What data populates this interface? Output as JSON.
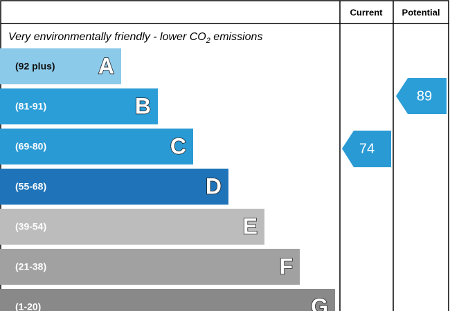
{
  "header": {
    "columns": [
      "Current",
      "Potential"
    ]
  },
  "subtitle": {
    "text": "Very environmentally friendly - lower CO",
    "subscript": "2",
    "suffix": " emissions"
  },
  "bands": [
    {
      "range": "(92 plus)",
      "letter": "A",
      "color": "#8ccaea",
      "text_color": "#111111"
    },
    {
      "range": "(81-91)",
      "letter": "B",
      "color": "#2b9ed8",
      "text_color": "#ffffff"
    },
    {
      "range": "(69-80)",
      "letter": "C",
      "color": "#2a9ad5",
      "text_color": "#ffffff"
    },
    {
      "range": "(55-68)",
      "letter": "D",
      "color": "#1f74b9",
      "text_color": "#ffffff"
    },
    {
      "range": "(39-54)",
      "letter": "E",
      "color": "#bcbcbc",
      "text_color": "#ffffff"
    },
    {
      "range": "(21-38)",
      "letter": "F",
      "color": "#a1a1a1",
      "text_color": "#ffffff"
    },
    {
      "range": "(1-20)",
      "letter": "G",
      "color": "#898989",
      "text_color": "#ffffff"
    }
  ],
  "current": {
    "value": 74,
    "color": "#2a9ad5"
  },
  "potential": {
    "value": 89,
    "color": "#2b9ed8"
  }
}
